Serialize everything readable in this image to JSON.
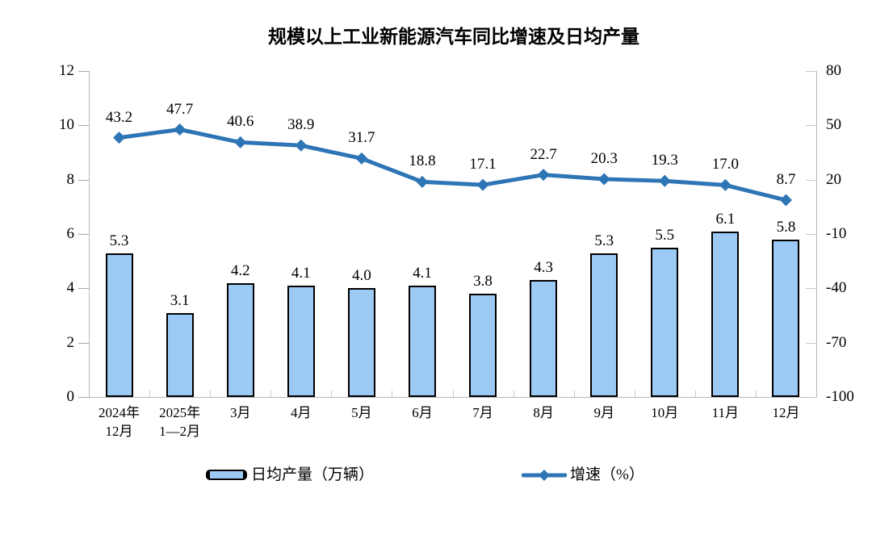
{
  "title": "规模以上工业新能源汽车同比增速及日均产量",
  "chart_data": {
    "type": "bar-line-combo",
    "title": "规模以上工业新能源汽车同比增速及日均产量",
    "categories": [
      [
        "2024年",
        "12月"
      ],
      [
        "2025年",
        "1—2月"
      ],
      [
        "3月"
      ],
      [
        "4月"
      ],
      [
        "5月"
      ],
      [
        "6月"
      ],
      [
        "7月"
      ],
      [
        "8月"
      ],
      [
        "9月"
      ],
      [
        "10月"
      ],
      [
        "11月"
      ],
      [
        "12月"
      ]
    ],
    "series": [
      {
        "name": "日均产量（万辆）",
        "type": "bar",
        "axis": "left",
        "values": [
          5.3,
          3.1,
          4.2,
          4.1,
          4.0,
          4.1,
          3.8,
          4.3,
          5.3,
          5.5,
          6.1,
          5.8
        ],
        "fill": "#9DC9F5",
        "stroke": "#000000"
      },
      {
        "name": "增速（%）",
        "type": "line",
        "axis": "right",
        "values": [
          43.2,
          47.7,
          40.6,
          38.9,
          31.7,
          18.8,
          17.1,
          22.7,
          20.3,
          19.3,
          17.0,
          8.7
        ],
        "color": "#2E75B6",
        "marker": "diamond"
      }
    ],
    "left_axis": {
      "min": 0,
      "max": 12,
      "ticks": [
        0,
        2,
        4,
        6,
        8,
        10,
        12
      ]
    },
    "right_axis": {
      "min": -100,
      "max": 80,
      "ticks": [
        80,
        50,
        20,
        -10,
        -40,
        -70,
        -100
      ]
    },
    "grid": false,
    "legend_position": "bottom",
    "data_labels": true
  }
}
